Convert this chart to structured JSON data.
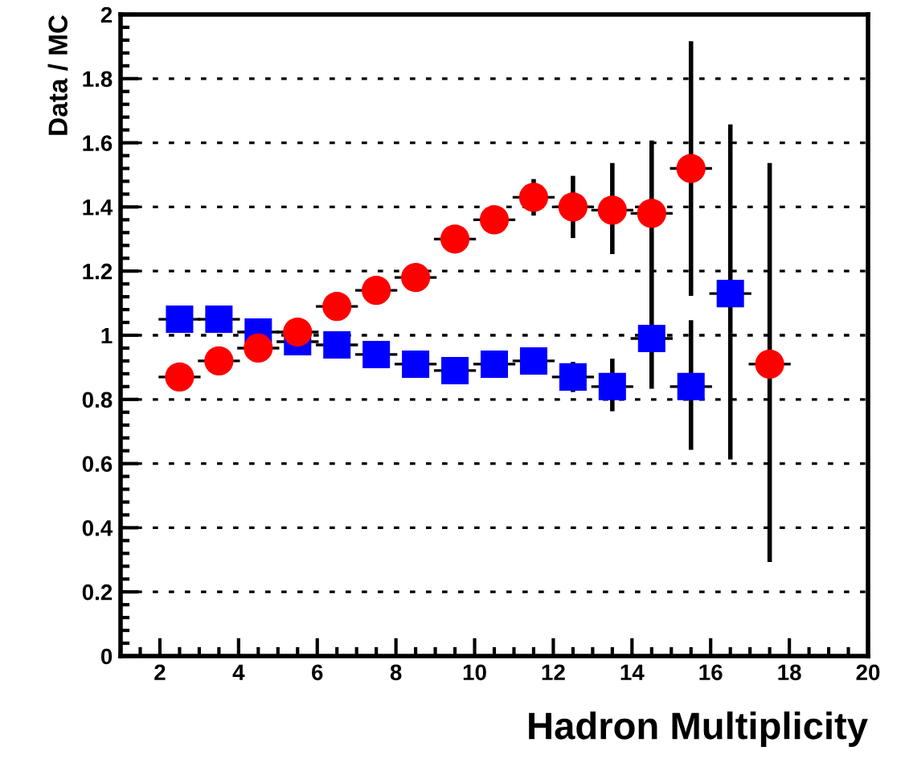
{
  "chart_data": {
    "type": "scatter",
    "xlabel": "Hadron Multiplicity",
    "ylabel": "Data / MC",
    "xlim": [
      1,
      20
    ],
    "xticks": [
      2,
      4,
      6,
      8,
      10,
      12,
      14,
      16,
      18,
      20
    ],
    "ylim": [
      0,
      2
    ],
    "yticks": [
      0,
      0.2,
      0.4,
      0.6,
      0.8,
      1,
      1.2,
      1.4,
      1.6,
      1.8,
      2
    ],
    "grid": "y",
    "legend": false,
    "series": [
      {
        "color": "#ff0000",
        "marker": "circle",
        "x": [
          2.5,
          3.5,
          4.5,
          5.5,
          6.5,
          7.5,
          8.5,
          9.5,
          10.5,
          11.5,
          12.5,
          13.5,
          14.5,
          15.5,
          17.5
        ],
        "values": [
          0.87,
          0.92,
          0.96,
          1.01,
          1.09,
          1.14,
          1.18,
          1.3,
          1.36,
          1.43,
          1.4,
          1.39,
          1.38,
          1.52,
          0.91
        ],
        "xerrors": [
          0.5,
          0.5,
          0.5,
          0.5,
          0.5,
          0.5,
          0.5,
          0.5,
          0.5,
          0.5,
          0.5,
          0.5,
          0.5,
          0.5,
          0.5
        ],
        "errors": [
          null,
          null,
          null,
          null,
          null,
          null,
          null,
          null,
          null,
          0.05,
          0.09,
          [
            1.26,
            1.53
          ],
          [
            0.84,
            1.6
          ],
          [
            1.13,
            1.91
          ],
          [
            0.3,
            1.53
          ]
        ]
      },
      {
        "color": "#0000ff",
        "marker": "square",
        "x": [
          2.5,
          3.5,
          4.5,
          5.5,
          6.5,
          7.5,
          8.5,
          9.5,
          10.5,
          11.5,
          12.5,
          13.5,
          14.5,
          15.5,
          16.5
        ],
        "values": [
          1.05,
          1.05,
          1.01,
          0.98,
          0.97,
          0.94,
          0.91,
          0.89,
          0.91,
          0.92,
          0.87,
          0.84,
          0.99,
          0.84,
          1.13
        ],
        "xerrors": [
          0.5,
          0.5,
          0.5,
          0.5,
          0.5,
          0.5,
          0.5,
          0.5,
          0.5,
          0.5,
          0.5,
          0.5,
          0.5,
          0.5,
          0.5
        ],
        "errors": [
          null,
          null,
          null,
          null,
          null,
          null,
          null,
          null,
          null,
          null,
          0.04,
          [
            0.77,
            0.92
          ],
          null,
          [
            0.65,
            1.04
          ],
          [
            0.62,
            1.65
          ]
        ]
      }
    ]
  }
}
